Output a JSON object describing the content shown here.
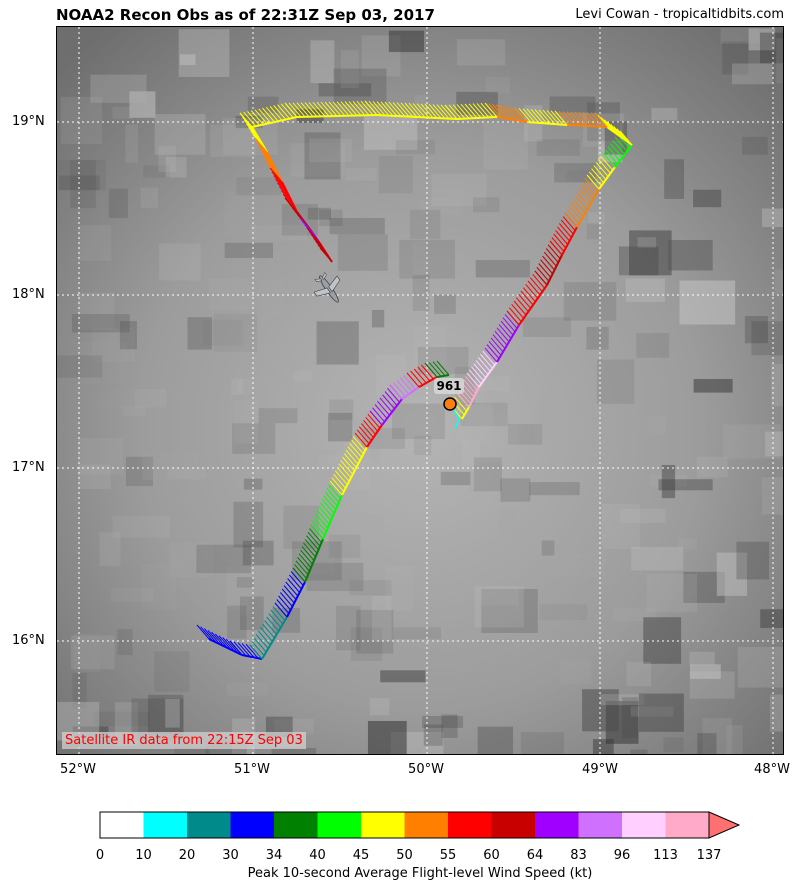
{
  "title": "NOAA2 Recon Obs as of 22:31Z Sep 03, 2017",
  "credit": "Levi Cowan - tropicaltidbits.com",
  "satellite_note": "Satellite IR data from 22:15Z Sep 03",
  "pressure_label": "961",
  "latitude_labels": [
    "19°N",
    "18°N",
    "17°N",
    "16°N"
  ],
  "longitude_labels": [
    "52°W",
    "51°W",
    "50°W",
    "49°W",
    "48°W"
  ],
  "colorbar": {
    "label": "Peak 10-second Average Flight-level Wind Speed (kt)",
    "ticks": [
      "0",
      "10",
      "20",
      "30",
      "34",
      "40",
      "45",
      "50",
      "55",
      "60",
      "64",
      "83",
      "96",
      "113",
      "137"
    ],
    "colors": [
      "#ffffff",
      "#00ffff",
      "#008b8b",
      "#0000ff",
      "#008000",
      "#00ff00",
      "#ffff00",
      "#ff8000",
      "#ff0000",
      "#c80000",
      "#a000ff",
      "#d070ff",
      "#ffd0ff",
      "#ffaac8"
    ],
    "extend_color": "#ff7070"
  },
  "colors": {
    "center_marker": "#ff7f0e",
    "gridline": "#ffffff"
  }
}
